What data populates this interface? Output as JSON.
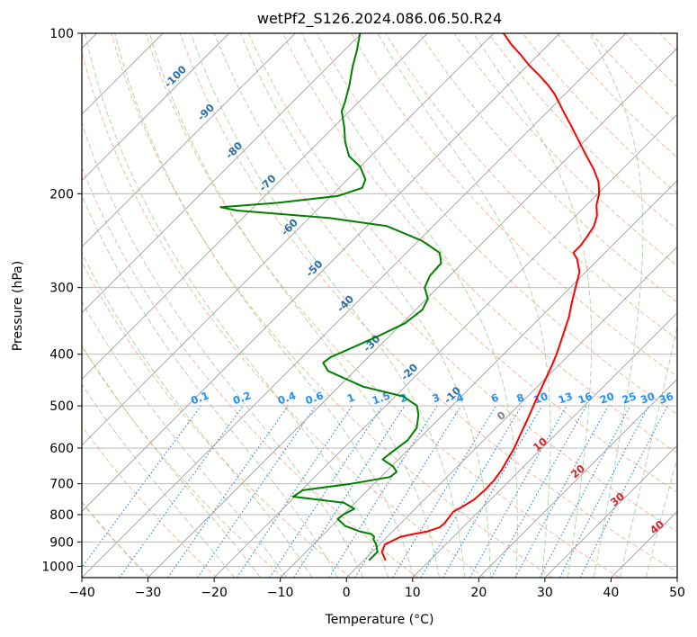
{
  "chart_data": {
    "type": "line",
    "title": "wetPf2_S126.2024.086.06.50.R24",
    "xlabel": "Temperature (°C)",
    "ylabel": "Pressure (hPa)",
    "xlim": [
      -40,
      50
    ],
    "ylim": [
      1050,
      100
    ],
    "y_scale": "log",
    "x_ticks": [
      -40,
      -30,
      -20,
      -10,
      0,
      10,
      20,
      30,
      40,
      50
    ],
    "y_ticks": [
      100,
      200,
      300,
      400,
      500,
      600,
      700,
      800,
      900,
      1000
    ],
    "grid": true,
    "skew": 45,
    "series": [
      {
        "name": "",
        "color": "#ff0000",
        "kind": "temperature",
        "points": [
          [
            975,
            3.3
          ],
          [
            940,
            1.5
          ],
          [
            910,
            0.8
          ],
          [
            880,
            2.0
          ],
          [
            870,
            3.5
          ],
          [
            860,
            5.3
          ],
          [
            845,
            6.5
          ],
          [
            830,
            6.6
          ],
          [
            810,
            6.4
          ],
          [
            790,
            6.2
          ],
          [
            770,
            6.9
          ],
          [
            750,
            7.5
          ],
          [
            720,
            7.7
          ],
          [
            690,
            7.6
          ],
          [
            660,
            7.2
          ],
          [
            630,
            6.5
          ],
          [
            600,
            5.8
          ],
          [
            570,
            4.8
          ],
          [
            540,
            3.8
          ],
          [
            510,
            2.7
          ],
          [
            480,
            1.5
          ],
          [
            450,
            0.3
          ],
          [
            420,
            -1.0
          ],
          [
            400,
            -2.0
          ],
          [
            370,
            -3.8
          ],
          [
            340,
            -5.8
          ],
          [
            320,
            -7.5
          ],
          [
            300,
            -9.2
          ],
          [
            280,
            -11.0
          ],
          [
            265,
            -13.3
          ],
          [
            258,
            -14.8
          ],
          [
            250,
            -14.8
          ],
          [
            240,
            -15.2
          ],
          [
            230,
            -15.7
          ],
          [
            220,
            -16.8
          ],
          [
            210,
            -18.5
          ],
          [
            200,
            -19.8
          ],
          [
            190,
            -21.7
          ],
          [
            180,
            -24.3
          ],
          [
            170,
            -27.4
          ],
          [
            160,
            -30.6
          ],
          [
            150,
            -34.0
          ],
          [
            140,
            -37.7
          ],
          [
            130,
            -41.6
          ],
          [
            125,
            -44.0
          ],
          [
            120,
            -46.7
          ],
          [
            115,
            -49.7
          ],
          [
            110,
            -52.5
          ],
          [
            105,
            -55.6
          ],
          [
            100,
            -58.5
          ]
        ]
      },
      {
        "name": "",
        "color": "#008000",
        "kind": "dewpoint",
        "points": [
          [
            975,
            0.8
          ],
          [
            940,
            0.8
          ],
          [
            910,
            -0.5
          ],
          [
            890,
            -1.7
          ],
          [
            880,
            -2.0
          ],
          [
            870,
            -2.8
          ],
          [
            860,
            -5.0
          ],
          [
            840,
            -8.0
          ],
          [
            815,
            -10.2
          ],
          [
            800,
            -10.0
          ],
          [
            780,
            -9.2
          ],
          [
            760,
            -11.7
          ],
          [
            740,
            -20.3
          ],
          [
            720,
            -19.8
          ],
          [
            700,
            -13.5
          ],
          [
            680,
            -8.6
          ],
          [
            665,
            -8.4
          ],
          [
            650,
            -9.7
          ],
          [
            630,
            -12.4
          ],
          [
            610,
            -12.1
          ],
          [
            580,
            -11.5
          ],
          [
            550,
            -12.0
          ],
          [
            520,
            -13.7
          ],
          [
            500,
            -15.3
          ],
          [
            480,
            -18.8
          ],
          [
            460,
            -26.4
          ],
          [
            430,
            -34.0
          ],
          [
            415,
            -36.0
          ],
          [
            405,
            -35.7
          ],
          [
            390,
            -34.0
          ],
          [
            370,
            -31.7
          ],
          [
            350,
            -29.6
          ],
          [
            330,
            -29.0
          ],
          [
            315,
            -29.8
          ],
          [
            300,
            -32.0
          ],
          [
            285,
            -33.0
          ],
          [
            270,
            -33.2
          ],
          [
            258,
            -35.0
          ],
          [
            245,
            -39.5
          ],
          [
            230,
            -47.0
          ],
          [
            222,
            -57.0
          ],
          [
            215,
            -72.0
          ],
          [
            212,
            -75.0
          ],
          [
            208,
            -67.0
          ],
          [
            202,
            -59.0
          ],
          [
            195,
            -56.5
          ],
          [
            188,
            -57.3
          ],
          [
            178,
            -60.0
          ],
          [
            170,
            -63.3
          ],
          [
            160,
            -66.0
          ],
          [
            150,
            -68.4
          ],
          [
            140,
            -71.2
          ],
          [
            135,
            -72.0
          ],
          [
            125,
            -74.0
          ],
          [
            115,
            -76.4
          ],
          [
            108,
            -78.0
          ],
          [
            100,
            -80.2
          ]
        ]
      }
    ],
    "dry_adiabat_labels": [
      "-100",
      "-90",
      "-80",
      "-70",
      "-60",
      "-50",
      "-40",
      "-30",
      "-20",
      "-10"
    ],
    "mixing_ratio_labels": [
      "0.1",
      "0.2",
      "0.4",
      "0.6",
      "1",
      "1.5",
      "2",
      "3",
      "4",
      "6",
      "8",
      "10",
      "13",
      "16",
      "20",
      "25",
      "30",
      "36"
    ],
    "moist_adiabat_labels": [
      "0",
      "10",
      "20",
      "30",
      "40"
    ],
    "colors": {
      "temperature": "#ff0000",
      "dewpoint": "#008000",
      "isotherm": "#a0a0a0",
      "dry_adiabat": "#f4a582",
      "moist_adiabat": "#a6d5a0",
      "mixing_ratio": "#2a7fde",
      "dry_label": "#2b6fa8",
      "mixing_label": "#1e90ff",
      "moist_label_cold": "#808080",
      "moist_label_warm": "#d62728",
      "grid": "#b0b0b0"
    }
  }
}
